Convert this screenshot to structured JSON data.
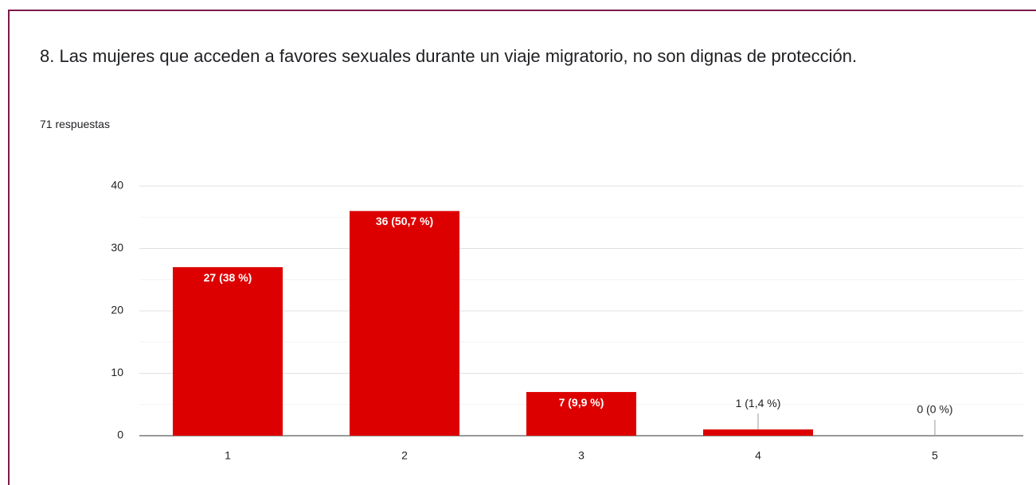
{
  "chart_data": {
    "type": "bar",
    "title": "8. Las mujeres que acceden a favores sexuales durante un viaje migratorio, no son dignas de protección.",
    "subtitle": "71 respuestas",
    "categories": [
      "1",
      "2",
      "3",
      "4",
      "5"
    ],
    "values": [
      27,
      36,
      7,
      1,
      0
    ],
    "value_labels": [
      "27 (38 %)",
      "36 (50,7 %)",
      "7 (9,9 %)",
      "1 (1,4 %)",
      "0 (0 %)"
    ],
    "color": "#dd0000",
    "ylim": [
      0,
      40
    ],
    "yticks": [
      0,
      10,
      20,
      30,
      40
    ],
    "minor_yticks": [
      5,
      15,
      25,
      35
    ],
    "grid": true
  }
}
